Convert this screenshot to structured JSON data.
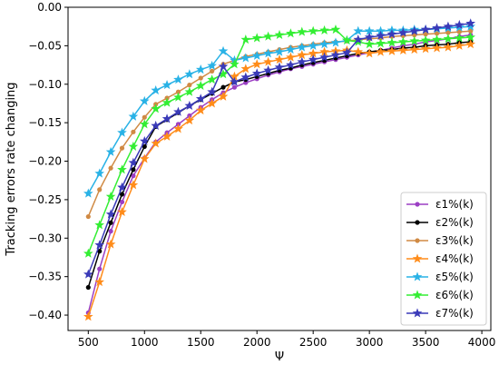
{
  "chart_data": {
    "type": "line",
    "title": "",
    "xlabel": "Ψ",
    "ylabel": "Tracking errors rate changing",
    "xlim": [
      320,
      4080
    ],
    "ylim": [
      -0.42,
      0.0
    ],
    "xticks": [
      500,
      1000,
      1500,
      2000,
      2500,
      3000,
      3500,
      4000
    ],
    "yticks": [
      0.0,
      -0.05,
      -0.1,
      -0.15,
      -0.2,
      -0.25,
      -0.3,
      -0.35,
      -0.4
    ],
    "ytick_labels": [
      "0.00",
      "−0.05",
      "−0.10",
      "−0.15",
      "−0.20",
      "−0.25",
      "−0.30",
      "−0.35",
      "−0.40"
    ],
    "grid": false,
    "legend": "lower-right",
    "x": [
      500,
      600,
      700,
      800,
      900,
      1000,
      1100,
      1200,
      1300,
      1400,
      1500,
      1600,
      1700,
      1800,
      1900,
      2000,
      2100,
      2200,
      2300,
      2400,
      2500,
      2600,
      2700,
      2800,
      2900,
      3000,
      3100,
      3200,
      3300,
      3400,
      3500,
      3600,
      3700,
      3800,
      3900
    ],
    "series": [
      {
        "name": "ε1%(k)",
        "color": "#9b3fc4",
        "marker": "dot",
        "values": [
          -0.397,
          -0.34,
          -0.291,
          -0.253,
          -0.219,
          -0.196,
          -0.175,
          -0.163,
          -0.152,
          -0.141,
          -0.13,
          -0.12,
          -0.111,
          -0.104,
          -0.098,
          -0.093,
          -0.088,
          -0.084,
          -0.08,
          -0.077,
          -0.074,
          -0.071,
          -0.068,
          -0.065,
          -0.062,
          -0.059,
          -0.056,
          -0.053,
          -0.05,
          -0.048,
          -0.045,
          -0.043,
          -0.041,
          -0.038,
          -0.036
        ]
      },
      {
        "name": "ε2%(k)",
        "color": "#000000",
        "marker": "dot",
        "values": [
          -0.364,
          -0.317,
          -0.28,
          -0.243,
          -0.211,
          -0.181,
          -0.155,
          -0.146,
          -0.137,
          -0.128,
          -0.12,
          -0.112,
          -0.104,
          -0.097,
          -0.094,
          -0.09,
          -0.086,
          -0.082,
          -0.079,
          -0.075,
          -0.072,
          -0.069,
          -0.066,
          -0.063,
          -0.06,
          -0.058,
          -0.056,
          -0.055,
          -0.053,
          -0.052,
          -0.05,
          -0.049,
          -0.048,
          -0.046,
          -0.045
        ]
      },
      {
        "name": "ε3%(k)",
        "color": "#d08a44",
        "marker": "dot",
        "values": [
          -0.272,
          -0.237,
          -0.209,
          -0.183,
          -0.162,
          -0.143,
          -0.126,
          -0.118,
          -0.11,
          -0.101,
          -0.092,
          -0.083,
          -0.074,
          -0.069,
          -0.064,
          -0.061,
          -0.058,
          -0.055,
          -0.052,
          -0.05,
          -0.048,
          -0.046,
          -0.045,
          -0.044,
          -0.042,
          -0.041,
          -0.04,
          -0.038,
          -0.037,
          -0.036,
          -0.035,
          -0.034,
          -0.033,
          -0.032,
          -0.031
        ]
      },
      {
        "name": "ε4%(k)",
        "color": "#ff8c1a",
        "marker": "star",
        "values": [
          -0.402,
          -0.357,
          -0.308,
          -0.266,
          -0.231,
          -0.197,
          -0.177,
          -0.168,
          -0.158,
          -0.147,
          -0.134,
          -0.125,
          -0.116,
          -0.09,
          -0.08,
          -0.074,
          -0.071,
          -0.068,
          -0.065,
          -0.062,
          -0.06,
          -0.058,
          -0.057,
          -0.056,
          -0.058,
          -0.06,
          -0.058,
          -0.057,
          -0.056,
          -0.055,
          -0.054,
          -0.053,
          -0.052,
          -0.05,
          -0.048
        ]
      },
      {
        "name": "ε5%(k)",
        "color": "#29b2e6",
        "marker": "star",
        "values": [
          -0.242,
          -0.216,
          -0.188,
          -0.163,
          -0.142,
          -0.122,
          -0.108,
          -0.101,
          -0.094,
          -0.087,
          -0.081,
          -0.076,
          -0.057,
          -0.069,
          -0.066,
          -0.063,
          -0.06,
          -0.058,
          -0.055,
          -0.052,
          -0.05,
          -0.048,
          -0.046,
          -0.043,
          -0.031,
          -0.031,
          -0.031,
          -0.03,
          -0.03,
          -0.029,
          -0.029,
          -0.028,
          -0.027,
          -0.026,
          -0.025
        ]
      },
      {
        "name": "ε6%(k)",
        "color": "#33ee33",
        "marker": "star",
        "values": [
          -0.32,
          -0.283,
          -0.246,
          -0.211,
          -0.181,
          -0.152,
          -0.132,
          -0.124,
          -0.117,
          -0.11,
          -0.102,
          -0.094,
          -0.087,
          -0.074,
          -0.042,
          -0.04,
          -0.038,
          -0.036,
          -0.034,
          -0.032,
          -0.031,
          -0.03,
          -0.029,
          -0.043,
          -0.045,
          -0.048,
          -0.047,
          -0.046,
          -0.045,
          -0.044,
          -0.043,
          -0.042,
          -0.041,
          -0.04,
          -0.039
        ]
      },
      {
        "name": "ε7%(k)",
        "color": "#3a3ab8",
        "marker": "star",
        "values": [
          -0.347,
          -0.309,
          -0.269,
          -0.234,
          -0.202,
          -0.174,
          -0.154,
          -0.145,
          -0.136,
          -0.128,
          -0.119,
          -0.11,
          -0.077,
          -0.097,
          -0.091,
          -0.086,
          -0.082,
          -0.078,
          -0.075,
          -0.071,
          -0.068,
          -0.065,
          -0.062,
          -0.059,
          -0.042,
          -0.039,
          -0.037,
          -0.035,
          -0.033,
          -0.031,
          -0.029,
          -0.027,
          -0.025,
          -0.023,
          -0.021
        ]
      }
    ]
  }
}
